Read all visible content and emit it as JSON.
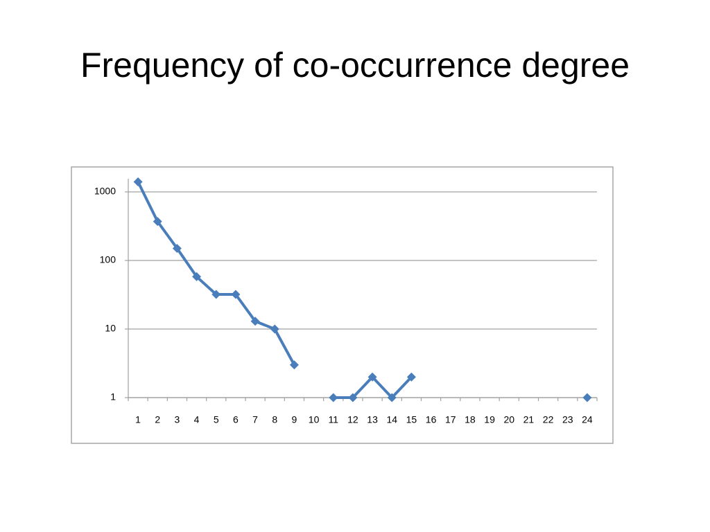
{
  "chart_data": {
    "type": "line",
    "title": "Frequency of co-occurrence degree",
    "categories": [
      "1",
      "2",
      "3",
      "4",
      "5",
      "6",
      "7",
      "8",
      "9",
      "10",
      "11",
      "12",
      "13",
      "14",
      "15",
      "16",
      "17",
      "18",
      "19",
      "20",
      "21",
      "22",
      "23",
      "24"
    ],
    "values": [
      1400,
      370,
      150,
      58,
      32,
      32,
      13,
      10,
      3,
      null,
      1,
      1,
      2,
      1,
      2,
      null,
      null,
      null,
      null,
      null,
      null,
      null,
      null,
      1
    ],
    "color": "#4a7ebb",
    "ylim": [
      1,
      1000
    ],
    "yticks": [
      1,
      10,
      100,
      1000
    ],
    "log_scale": true,
    "grid": true
  }
}
